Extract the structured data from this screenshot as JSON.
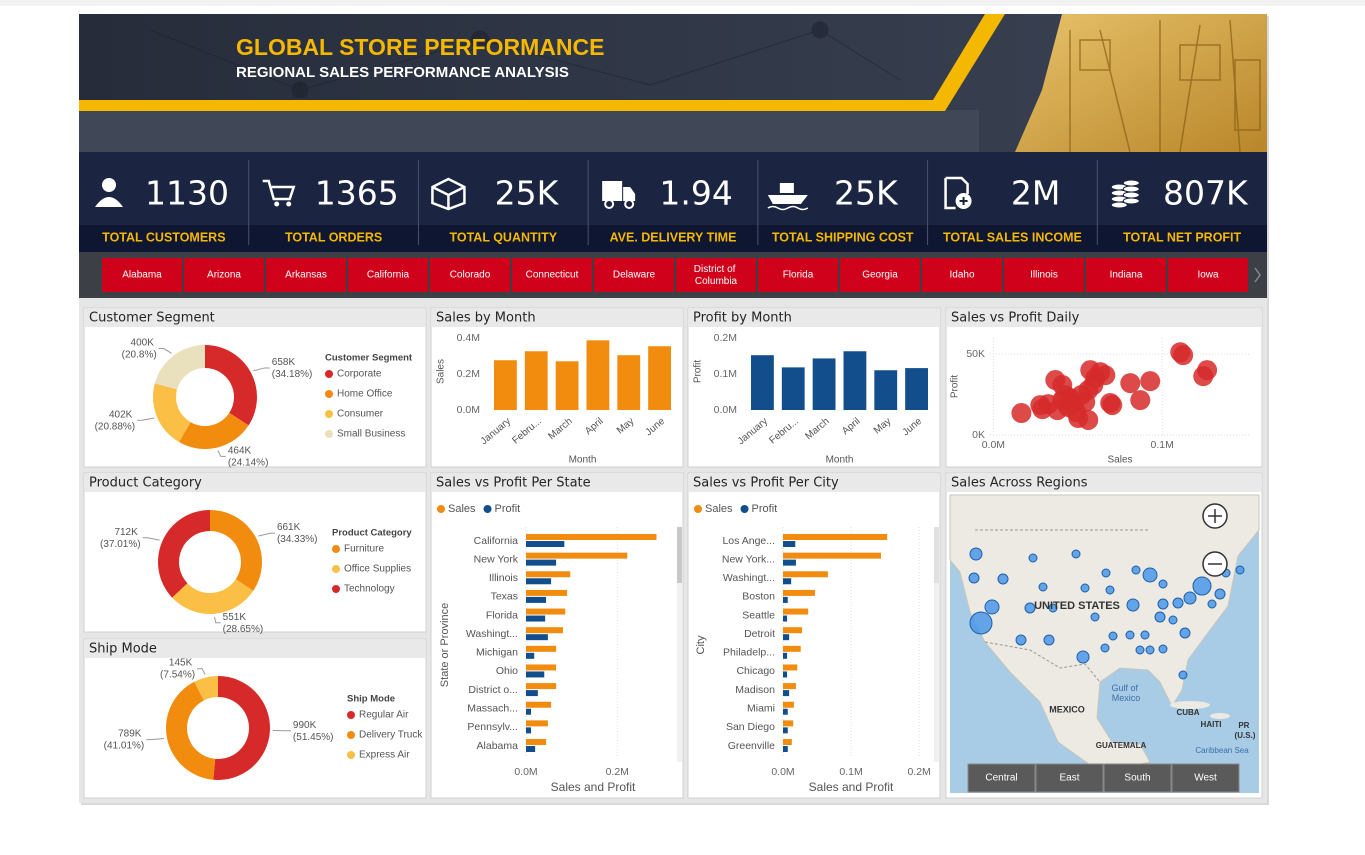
{
  "header": {
    "title": "GLOBAL STORE PERFORMANCE",
    "subtitle": "REGIONAL SALES PERFORMANCE ANALYSIS"
  },
  "kpis": [
    {
      "value": "1130",
      "label": "TOTAL CUSTOMERS"
    },
    {
      "value": "1365",
      "label": "TOTAL ORDERS"
    },
    {
      "value": "25K",
      "label": "TOTAL QUANTITY"
    },
    {
      "value": "1.94",
      "label": "AVE. DELIVERY TIME"
    },
    {
      "value": "25K",
      "label": "TOTAL SHIPPING COST"
    },
    {
      "value": "2M",
      "label": "TOTAL SALES INCOME"
    },
    {
      "value": "807K",
      "label": "TOTAL NET PROFIT"
    }
  ],
  "states": [
    "Alabama",
    "Arizona",
    "Arkansas",
    "California",
    "Colorado",
    "Connecticut",
    "Delaware",
    "District of Columbia",
    "Florida",
    "Georgia",
    "Idaho",
    "Illinois",
    "Indiana",
    "Iowa"
  ],
  "chart_data": [
    {
      "type": "donut",
      "title": "Customer Segment",
      "legend_title": "Customer Segment",
      "categories": [
        "Corporate",
        "Home Office",
        "Consumer",
        "Small Business"
      ],
      "values": [
        658000,
        464000,
        402000,
        400000
      ],
      "value_labels": [
        "658K (34.18%)",
        "464K (24.14%)",
        "402K (20.88%)",
        "400K (20.8%)"
      ],
      "colors": [
        "#d62a2a",
        "#f28c0f",
        "#fbbf45",
        "#e9e0bd"
      ]
    },
    {
      "type": "donut",
      "title": "Product Category",
      "legend_title": "Product Category",
      "categories": [
        "Furniture",
        "Office Supplies",
        "Technology"
      ],
      "values": [
        661000,
        551000,
        712000
      ],
      "value_labels": [
        "661K (34.33%)",
        "551K (28.65%)",
        "712K (37.01%)"
      ],
      "colors": [
        "#f28c0f",
        "#fbbf45",
        "#d62a2a"
      ]
    },
    {
      "type": "donut",
      "title": "Ship Mode",
      "legend_title": "Ship Mode",
      "categories": [
        "Regular Air",
        "Delivery Truck",
        "Express Air"
      ],
      "values": [
        990000,
        789000,
        145000
      ],
      "value_labels": [
        "990K (51.45%)",
        "789K (41.01%)",
        "145K (7.54%)"
      ],
      "colors": [
        "#d62a2a",
        "#f28c0f",
        "#fbbf45"
      ]
    },
    {
      "type": "bar",
      "title": "Sales by Month",
      "xlabel": "Month",
      "ylabel": "Sales",
      "categories": [
        "January",
        "Febru...",
        "March",
        "April",
        "May",
        "June"
      ],
      "values": [
        278000,
        328000,
        272000,
        389000,
        306000,
        356000
      ],
      "color": "#f28c0f",
      "ylim": [
        0,
        430000
      ],
      "yticks": [
        {
          "value": 0,
          "label": "0.0M"
        },
        {
          "value": 200000,
          "label": "0.2M"
        },
        {
          "value": 400000,
          "label": "0.4M"
        }
      ],
      "grid": false
    },
    {
      "type": "bar",
      "title": "Profit by Month",
      "xlabel": "Month",
      "ylabel": "Profit",
      "categories": [
        "January",
        "Febru...",
        "March",
        "April",
        "May",
        "June"
      ],
      "values": [
        153000,
        119000,
        144000,
        164000,
        111000,
        117000
      ],
      "color": "#114e8b",
      "ylim": [
        0,
        215000
      ],
      "yticks": [
        {
          "value": 0,
          "label": "0.0M"
        },
        {
          "value": 100000,
          "label": "0.1M"
        },
        {
          "value": 200000,
          "label": "0.2M"
        }
      ],
      "grid": false
    },
    {
      "type": "scatter",
      "title": "Sales vs Profit Daily",
      "xlabel": "Sales",
      "ylabel": "Profit",
      "color": "#d62a2a",
      "x": [
        16600,
        27800,
        29000,
        32500,
        36700,
        37900,
        40800,
        42600,
        44400,
        45600,
        47300,
        49100,
        50300,
        52100,
        54400,
        56200,
        57400,
        59200,
        60400,
        63300,
        66300,
        69200,
        70400,
        81100,
        87000,
        92900,
        110700,
        112400,
        124300,
        126600,
        56200,
        40800
      ],
      "values": [
        13600,
        18500,
        16000,
        19100,
        34000,
        15400,
        21600,
        24700,
        17300,
        22800,
        19800,
        14200,
        10500,
        24700,
        20400,
        27800,
        40100,
        30900,
        35200,
        38900,
        37000,
        19800,
        18500,
        32100,
        21600,
        33300,
        51200,
        49400,
        36400,
        40100,
        9300,
        30900
      ],
      "xlim": [
        -2000,
        152000
      ],
      "ylim": [
        0,
        60000
      ],
      "xticks": [
        {
          "value": 0,
          "label": "0.0M"
        },
        {
          "value": 100000,
          "label": "0.1M"
        }
      ],
      "yticks": [
        {
          "value": 0,
          "label": "0K"
        },
        {
          "value": 50000,
          "label": "50K"
        }
      ],
      "grid": true
    },
    {
      "type": "bar",
      "orientation": "horizontal",
      "title": "Sales vs Profit Per State",
      "xlabel": "Sales and Profit",
      "ylabel": "State or Province",
      "categories": [
        "California",
        "New York",
        "Illinois",
        "Texas",
        "Florida",
        "Washingt...",
        "Michigan",
        "Ohio",
        "District o...",
        "Massach...",
        "Pennsylv...",
        "Alabama"
      ],
      "series": [
        {
          "name": "Sales",
          "color": "#f28c0f",
          "values": [
            286000,
            222000,
            97000,
            90000,
            86000,
            81000,
            66000,
            66000,
            66000,
            55000,
            48000,
            44000
          ]
        },
        {
          "name": "Profit",
          "color": "#114e8b",
          "values": [
            84000,
            66000,
            55000,
            44000,
            42000,
            48000,
            18000,
            40000,
            26000,
            11000,
            11000,
            20000
          ]
        }
      ],
      "xlim": [
        0,
        320000
      ],
      "xticks": [
        {
          "value": 0,
          "label": "0.0M"
        },
        {
          "value": 200000,
          "label": "0.2M"
        }
      ],
      "grid": true
    },
    {
      "type": "bar",
      "orientation": "horizontal",
      "title": "Sales vs Profit Per City",
      "xlabel": "Sales and Profit",
      "ylabel": "City",
      "categories": [
        "Los Ange...",
        "New York...",
        "Washingt...",
        "Boston",
        "Seattle",
        "Detroit",
        "Philadelp...",
        "Chicago",
        "Madison",
        "Miami",
        "San Diego",
        "Greenville"
      ],
      "series": [
        {
          "name": "Sales",
          "color": "#f28c0f",
          "values": [
            153000,
            144000,
            66000,
            47000,
            37000,
            28000,
            26000,
            21000,
            19000,
            16000,
            15000,
            13000
          ]
        },
        {
          "name": "Profit",
          "color": "#114e8b",
          "values": [
            18000,
            19000,
            12000,
            7000,
            6000,
            9000,
            6000,
            6000,
            9000,
            7000,
            7000,
            7000
          ]
        }
      ],
      "xlim": [
        0,
        216000
      ],
      "xticks": [
        {
          "value": 0,
          "label": "0.0M"
        },
        {
          "value": 100000,
          "label": "0.1M"
        },
        {
          "value": 200000,
          "label": "0.2M"
        }
      ],
      "grid": true
    },
    {
      "type": "map",
      "title": "Sales Across Regions",
      "labels": [
        "UNITED STATES",
        "MEXICO",
        "Gulf of Mexico",
        "CUBA",
        "HAITI",
        "PR (U.S.)",
        "GUATEMALA",
        "Caribbean Sea"
      ],
      "buttons": [
        "Central",
        "East",
        "South",
        "West"
      ]
    }
  ]
}
